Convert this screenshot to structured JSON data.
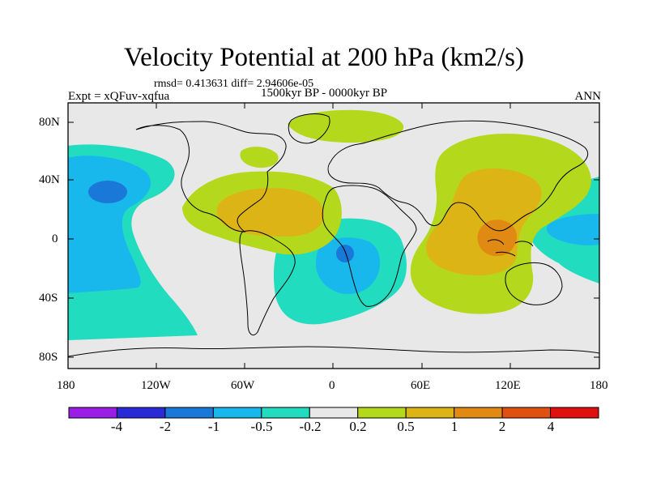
{
  "title": "Velocity Potential at 200 hPa (km2/s)",
  "stats": "rmsd= 0.413631 diff= 2.94606e-05",
  "experiment": "Expt = xQFuv-xqfua",
  "period": "1500kyr BP - 0000kyr BP",
  "season": "ANN",
  "axes": {
    "lat_labels": [
      "80N",
      "40N",
      "0",
      "40S",
      "80S"
    ],
    "lon_labels": [
      "180",
      "120W",
      "60W",
      "0",
      "60E",
      "120E",
      "180"
    ]
  },
  "colorbar": {
    "labels": [
      "-4",
      "-2",
      "-1",
      "-0.5",
      "-0.2",
      "0.2",
      "0.5",
      "1",
      "2",
      "4"
    ],
    "colors": [
      "#9a1ee6",
      "#2a2ad6",
      "#1a78d8",
      "#18b8ec",
      "#22dcc0",
      "#e8e8e8",
      "#b4d81c",
      "#dcb416",
      "#e08a14",
      "#e05010",
      "#e01010"
    ]
  }
}
